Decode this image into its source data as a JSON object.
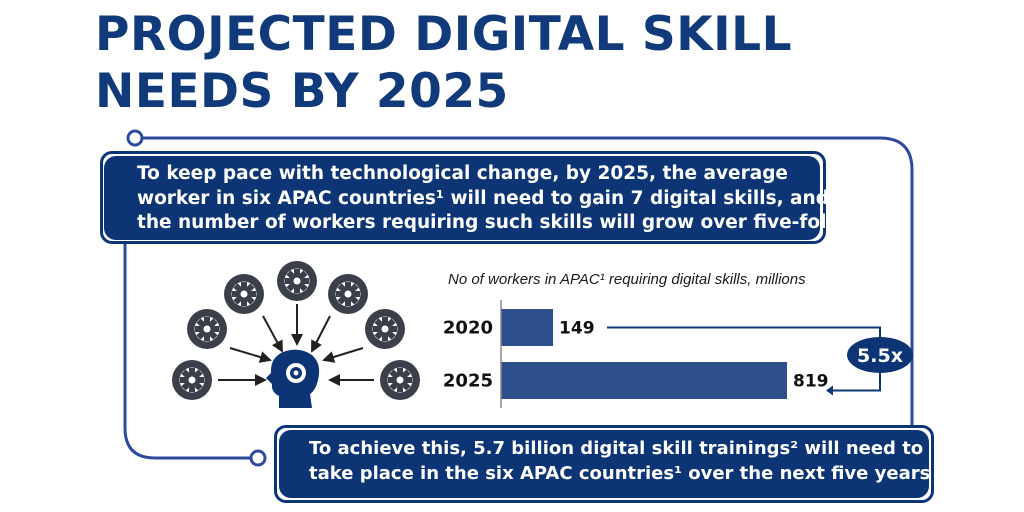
{
  "title": {
    "line1": "PROJECTED DIGITAL SKILL",
    "line2": "NEEDS BY 2025"
  },
  "intro_banner": {
    "line1": "To keep pace with technological change, by 2025, the average",
    "line2": "worker in six APAC countries¹ will need to gain 7 digital skills, and",
    "line3": "the number of workers requiring such skills will grow over five-fold"
  },
  "bottom_banner": {
    "line1": "To achieve this, 5.7 billion digital skill trainings² will need to",
    "line2": "take place in the six APAC countries¹ over the next five years"
  },
  "multiplier_badge": "5.5x",
  "colors": {
    "navy": "#0d3575",
    "title": "#103a7a",
    "bar": "#2d4f8c",
    "frame": "#2e4a9e",
    "icon": "#3a3f4a"
  },
  "icons": {
    "gears": "gear-icon",
    "head": "head-gear-icon"
  },
  "chart_data": {
    "type": "bar",
    "orientation": "horizontal",
    "title": "No of workers in APAC¹ requiring digital skills, millions",
    "categories": [
      "2020",
      "2025"
    ],
    "values": [
      149,
      819
    ],
    "value_labels": [
      "149",
      "819"
    ],
    "xlim": [
      0,
      819
    ]
  }
}
